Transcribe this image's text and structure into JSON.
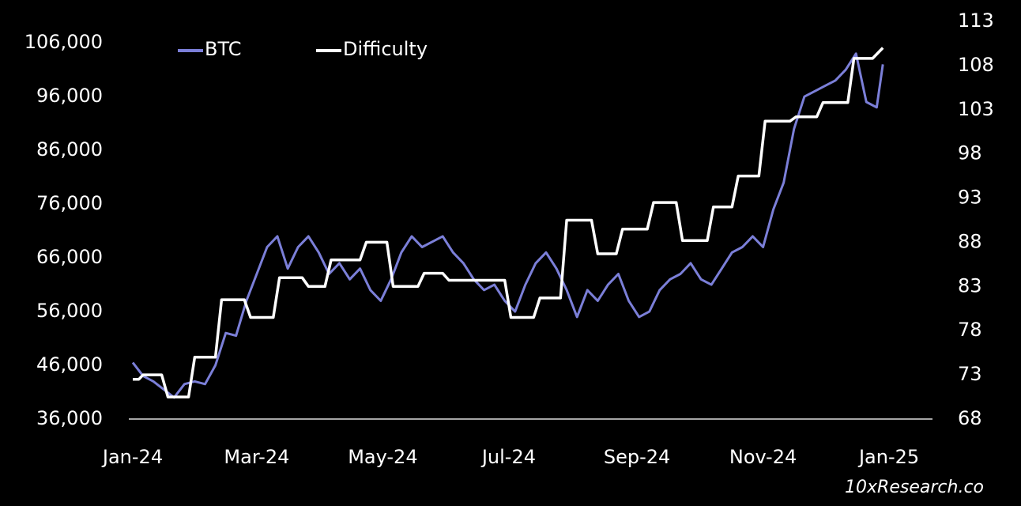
{
  "chart_data": {
    "type": "line",
    "watermark": "10xResearch.co",
    "xlim": [
      0,
      387
    ],
    "xticks": [
      {
        "value": 0,
        "label": "Jan-24"
      },
      {
        "value": 60,
        "label": "Mar-24"
      },
      {
        "value": 121,
        "label": "May-24"
      },
      {
        "value": 182,
        "label": "Jul-24"
      },
      {
        "value": 244,
        "label": "Sep-24"
      },
      {
        "value": 305,
        "label": "Nov-24"
      },
      {
        "value": 366,
        "label": "Jan-25"
      }
    ],
    "ylim": [
      36000,
      110000
    ],
    "yticks": [
      {
        "value": 36000,
        "label": "36,000"
      },
      {
        "value": 46000,
        "label": "46,000"
      },
      {
        "value": 56000,
        "label": "56,000"
      },
      {
        "value": 66000,
        "label": "66,000"
      },
      {
        "value": 76000,
        "label": "76,000"
      },
      {
        "value": 86000,
        "label": "86,000"
      },
      {
        "value": 96000,
        "label": "96,000"
      },
      {
        "value": 106000,
        "label": "106,000"
      }
    ],
    "y2lim": [
      68,
      113
    ],
    "y2ticks": [
      68,
      73,
      78,
      83,
      88,
      93,
      98,
      103,
      108,
      113
    ],
    "legend": "top",
    "series": [
      {
        "name": "BTC",
        "color": "#7b7fd8",
        "x": [
          0,
          5,
          10,
          15,
          20,
          25,
          30,
          35,
          40,
          45,
          50,
          55,
          60,
          65,
          70,
          75,
          80,
          85,
          90,
          95,
          100,
          105,
          110,
          115,
          120,
          125,
          130,
          135,
          140,
          145,
          150,
          155,
          160,
          165,
          170,
          175,
          180,
          185,
          190,
          195,
          200,
          205,
          210,
          215,
          220,
          225,
          230,
          235,
          240,
          245,
          250,
          255,
          260,
          265,
          270,
          275,
          280,
          285,
          290,
          295,
          300,
          305,
          310,
          315,
          320,
          325,
          330,
          335,
          340,
          345,
          350,
          355,
          360,
          363
        ],
        "values": [
          46500,
          44000,
          43000,
          41500,
          40000,
          42500,
          43000,
          42500,
          46000,
          52000,
          51500,
          58000,
          63000,
          68000,
          70000,
          64000,
          68000,
          70000,
          67000,
          63000,
          65000,
          62000,
          64000,
          60000,
          58000,
          62000,
          67000,
          70000,
          68000,
          69000,
          70000,
          67000,
          65000,
          62000,
          60000,
          61000,
          58000,
          56000,
          61000,
          65000,
          67000,
          64000,
          60000,
          55000,
          60000,
          58000,
          61000,
          63000,
          58000,
          55000,
          56000,
          60000,
          62000,
          63000,
          65000,
          62000,
          61000,
          64000,
          67000,
          68000,
          70000,
          68000,
          75000,
          80000,
          90000,
          96000,
          97000,
          98000,
          99000,
          101000,
          104000,
          95000,
          94000,
          102000
        ]
      },
      {
        "name": "Difficulty",
        "color": "#ffffff",
        "axis": "y2",
        "x": [
          0,
          3,
          5,
          14,
          17,
          27,
          30,
          40,
          43,
          54,
          57,
          68,
          71,
          82,
          85,
          93,
          96,
          110,
          113,
          123,
          126,
          138,
          141,
          150,
          153,
          180,
          183,
          194,
          197,
          207,
          210,
          222,
          225,
          234,
          237,
          249,
          252,
          263,
          266,
          278,
          281,
          290,
          293,
          303,
          306,
          318,
          321,
          331,
          334,
          346,
          349,
          358,
          363
        ],
        "values": [
          72.5,
          72.5,
          73,
          73,
          70.5,
          70.5,
          75,
          75,
          81.5,
          81.5,
          79.5,
          79.5,
          84,
          84,
          83,
          83,
          86,
          86,
          88,
          88,
          83,
          83,
          84.5,
          84.5,
          83.7,
          83.7,
          79.5,
          79.5,
          81.7,
          81.7,
          90.5,
          90.5,
          86.7,
          86.7,
          89.5,
          89.5,
          92.5,
          92.5,
          88.2,
          88.2,
          92,
          92,
          95.5,
          95.5,
          101.7,
          101.7,
          102.2,
          102.2,
          103.8,
          103.8,
          108.8,
          108.8,
          110
        ]
      }
    ]
  }
}
